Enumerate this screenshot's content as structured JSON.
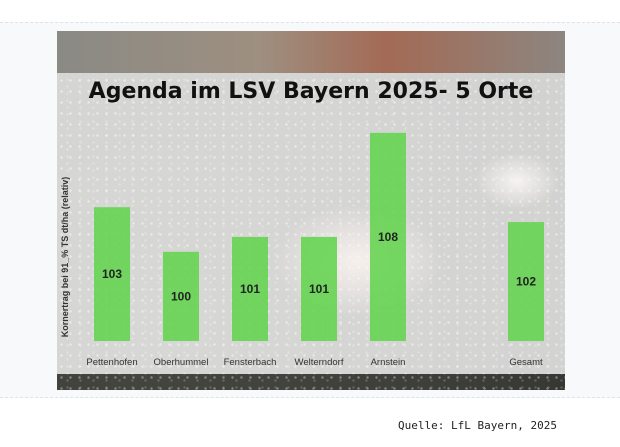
{
  "chart_data": {
    "type": "bar",
    "title": "Agenda im LSV Bayern 2025- 5 Orte",
    "ylabel": "Kornertrag bei 91_% TS dt/ha (relativ)",
    "categories": [
      "Pettenhofen",
      "Oberhummel",
      "Fensterbach",
      "Welterndorf",
      "Arnstein",
      "",
      "Gesamt"
    ],
    "values": [
      103,
      100,
      101,
      101,
      108,
      null,
      102
    ],
    "ylim": [
      94,
      109
    ],
    "bar_color": "#5fd34a"
  },
  "source": "Quelle: LfL Bayern, 2025"
}
